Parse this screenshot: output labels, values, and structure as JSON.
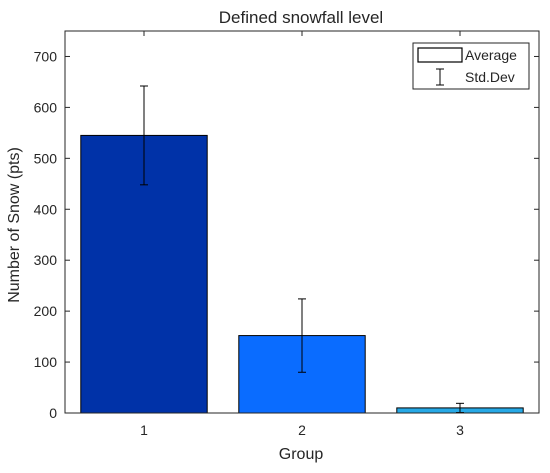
{
  "chart_data": {
    "type": "bar",
    "title": "Defined snowfall level",
    "xlabel": "Group",
    "ylabel": "Number of Snow (pts)",
    "categories": [
      "1",
      "2",
      "3"
    ],
    "xlim": [
      0.5,
      3.5
    ],
    "ylim": [
      0,
      750
    ],
    "yticks": [
      0,
      100,
      200,
      300,
      400,
      500,
      600,
      700
    ],
    "series": [
      {
        "name": "Average",
        "values": [
          545,
          152,
          10
        ],
        "errors": [
          97,
          72,
          9
        ],
        "error_name": "Std.Dev",
        "colors": [
          "#0032A8",
          "#0A6CFF",
          "#27A9E6"
        ]
      }
    ],
    "legend": {
      "position": "top-right",
      "entries": [
        "Average",
        "Std.Dev"
      ]
    },
    "grid": false
  }
}
